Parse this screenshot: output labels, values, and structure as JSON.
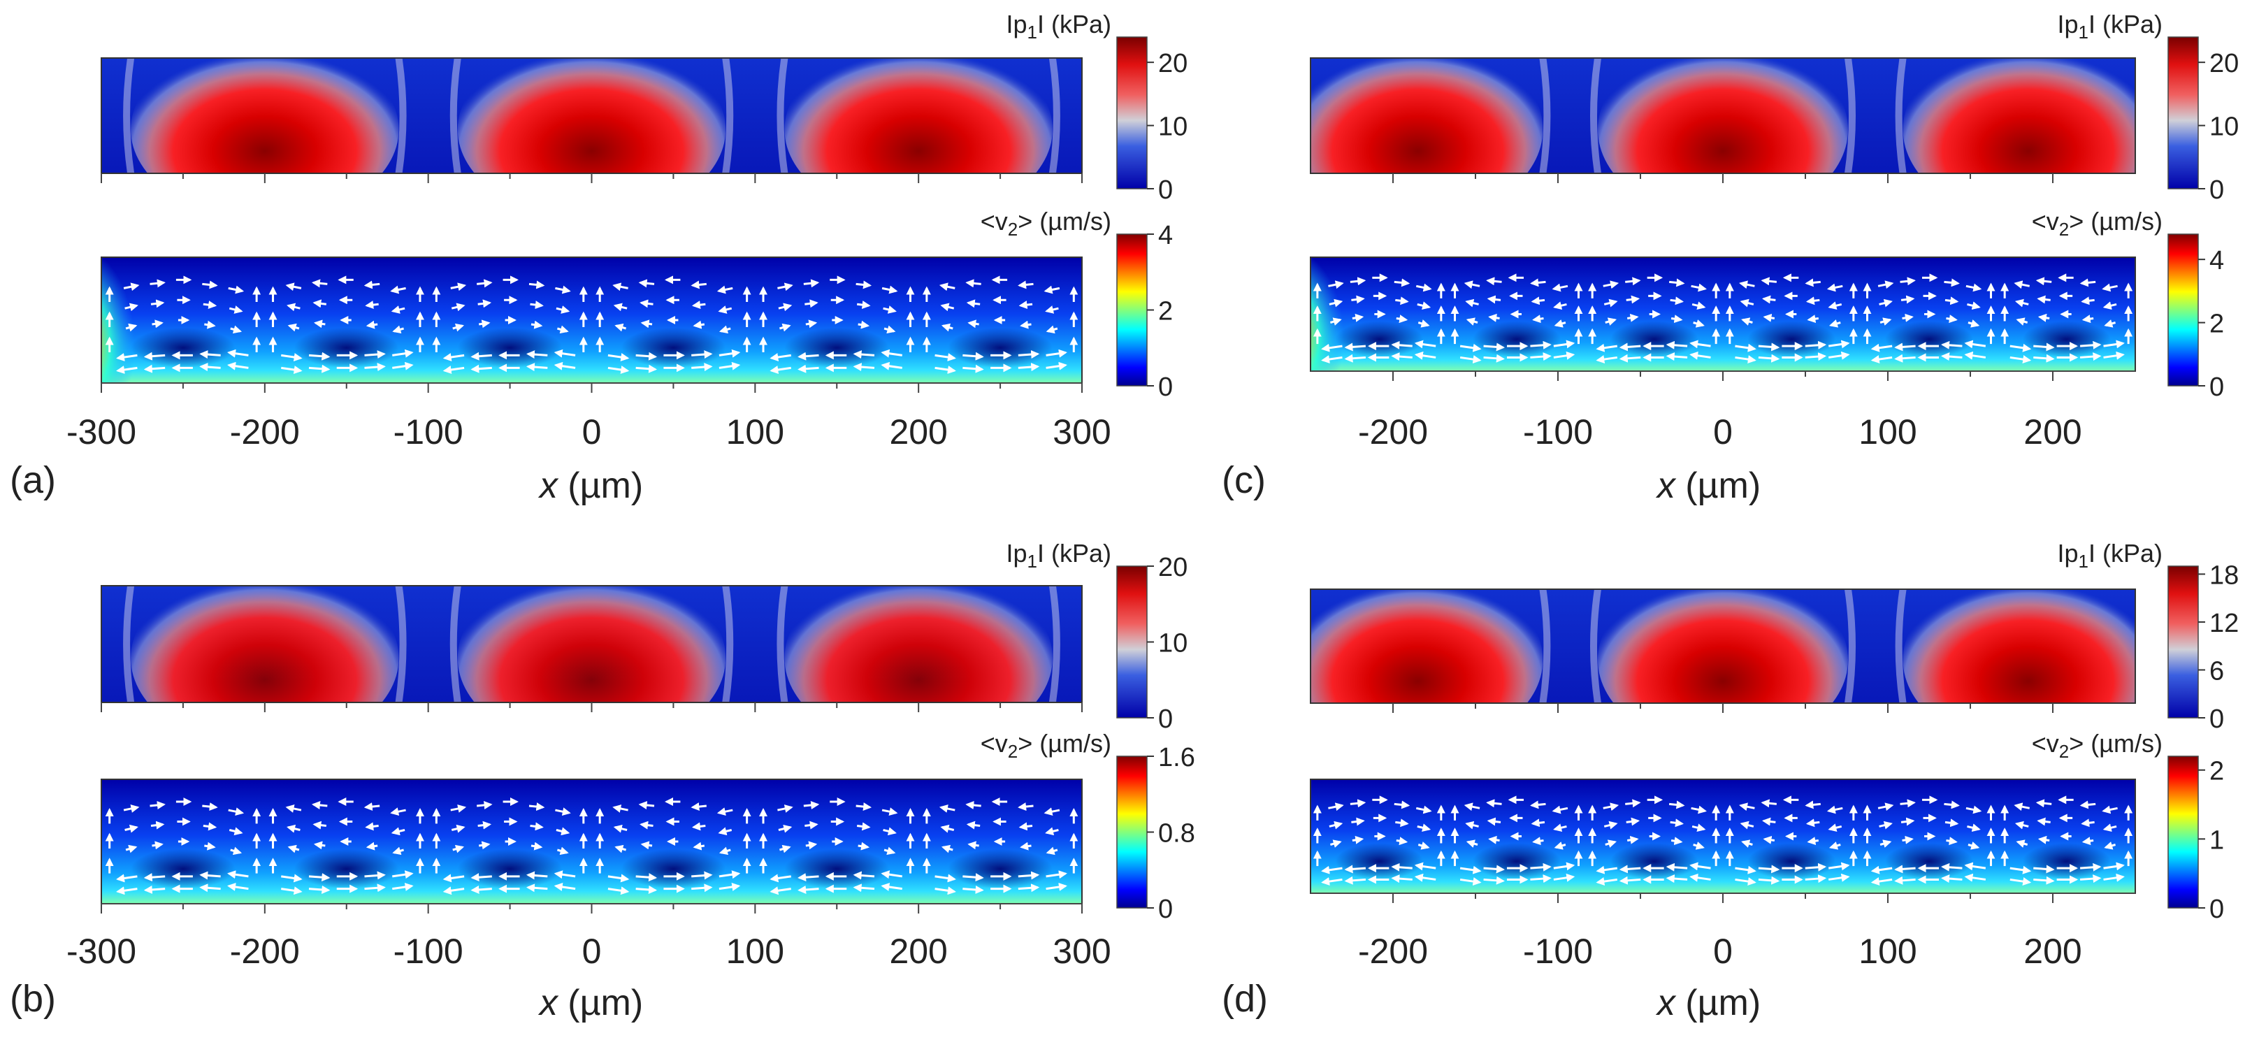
{
  "figure": {
    "panels": [
      {
        "id": "a",
        "label": "(a)",
        "xlabel_var": "x",
        "xlabel_unit": " (µm)",
        "x_ticks": [
          "-300",
          "-200",
          "-100",
          "0",
          "100",
          "200",
          "300"
        ],
        "x_range": [
          -300,
          300
        ],
        "top_map": {
          "quantity": "|p1| (kPa)",
          "cb_pre": "Ip",
          "cb_sub": "1",
          "cb_post": "I (kPa)",
          "cb_ticks": [
            "0",
            "10",
            "20"
          ],
          "cb_tick_values": [
            0,
            10,
            20
          ],
          "cb_max": 24,
          "peaks_x": [
            -200,
            0,
            200
          ],
          "peak_value": 24
        },
        "bottom_map": {
          "quantity": "<v2> (µm/s)",
          "cb_pre": "<v",
          "cb_sub": "2",
          "cb_post": "> (µm/s)",
          "cb_ticks": [
            "0",
            "2",
            "4"
          ],
          "cb_tick_values": [
            0,
            2,
            4
          ],
          "cb_max": 4,
          "vortex_count": 6
        }
      },
      {
        "id": "b",
        "label": "(b)",
        "xlabel_var": "x",
        "xlabel_unit": " (µm)",
        "x_ticks": [
          "-300",
          "-200",
          "-100",
          "0",
          "100",
          "200",
          "300"
        ],
        "x_range": [
          -300,
          300
        ],
        "top_map": {
          "quantity": "|p1| (kPa)",
          "cb_pre": "Ip",
          "cb_sub": "1",
          "cb_post": "I (kPa)",
          "cb_ticks": [
            "0",
            "10",
            "20"
          ],
          "cb_tick_values": [
            0,
            10,
            20
          ],
          "cb_max": 20,
          "peaks_x": [
            -200,
            0,
            200
          ],
          "peak_value": 19
        },
        "bottom_map": {
          "quantity": "<v2> (µm/s)",
          "cb_pre": "<v",
          "cb_sub": "2",
          "cb_post": "> (µm/s)",
          "cb_ticks": [
            "0",
            "0.8",
            "1.6"
          ],
          "cb_tick_values": [
            0,
            0.8,
            1.6
          ],
          "cb_max": 1.6,
          "vortex_count": 6
        }
      },
      {
        "id": "c",
        "label": "(c)",
        "xlabel_var": "x",
        "xlabel_unit": " (µm)",
        "x_ticks": [
          "-200",
          "-100",
          "0",
          "100",
          "200"
        ],
        "x_range": [
          -250,
          250
        ],
        "top_map": {
          "quantity": "|p1| (kPa)",
          "cb_pre": "Ip",
          "cb_sub": "1",
          "cb_post": "I (kPa)",
          "cb_ticks": [
            "0",
            "10",
            "20"
          ],
          "cb_tick_values": [
            0,
            10,
            20
          ],
          "cb_max": 24,
          "peaks_x": [
            -185,
            0,
            185
          ],
          "peak_value": 24
        },
        "bottom_map": {
          "quantity": "<v2> (µm/s)",
          "cb_pre": "<v",
          "cb_sub": "2",
          "cb_post": "> (µm/s)",
          "cb_ticks": [
            "0",
            "2",
            "4"
          ],
          "cb_tick_values": [
            0,
            2,
            4
          ],
          "cb_max": 4.8,
          "vortex_count": 6
        }
      },
      {
        "id": "d",
        "label": "(d)",
        "xlabel_var": "x",
        "xlabel_unit": " (µm)",
        "x_ticks": [
          "-200",
          "-100",
          "0",
          "100",
          "200"
        ],
        "x_range": [
          -250,
          250
        ],
        "top_map": {
          "quantity": "|p1| (kPa)",
          "cb_pre": "Ip",
          "cb_sub": "1",
          "cb_post": "I (kPa)",
          "cb_ticks": [
            "0",
            "6",
            "12",
            "18"
          ],
          "cb_tick_values": [
            0,
            6,
            12,
            18
          ],
          "cb_max": 19,
          "peaks_x": [
            -185,
            0,
            185
          ],
          "peak_value": 19
        },
        "bottom_map": {
          "quantity": "<v2> (µm/s)",
          "cb_pre": "<v",
          "cb_sub": "2",
          "cb_post": "> (µm/s)",
          "cb_ticks": [
            "0",
            "1",
            "2"
          ],
          "cb_tick_values": [
            0,
            1,
            2
          ],
          "cb_max": 2.2,
          "vortex_count": 6
        }
      }
    ]
  },
  "colors": {
    "jet_blue": "#0000a0",
    "jet_red": "#c00000",
    "pressure_low": "#0000a8",
    "pressure_mid": "#c8c8c8",
    "pressure_high": "#7a0000",
    "arrow": "#ffffff"
  }
}
